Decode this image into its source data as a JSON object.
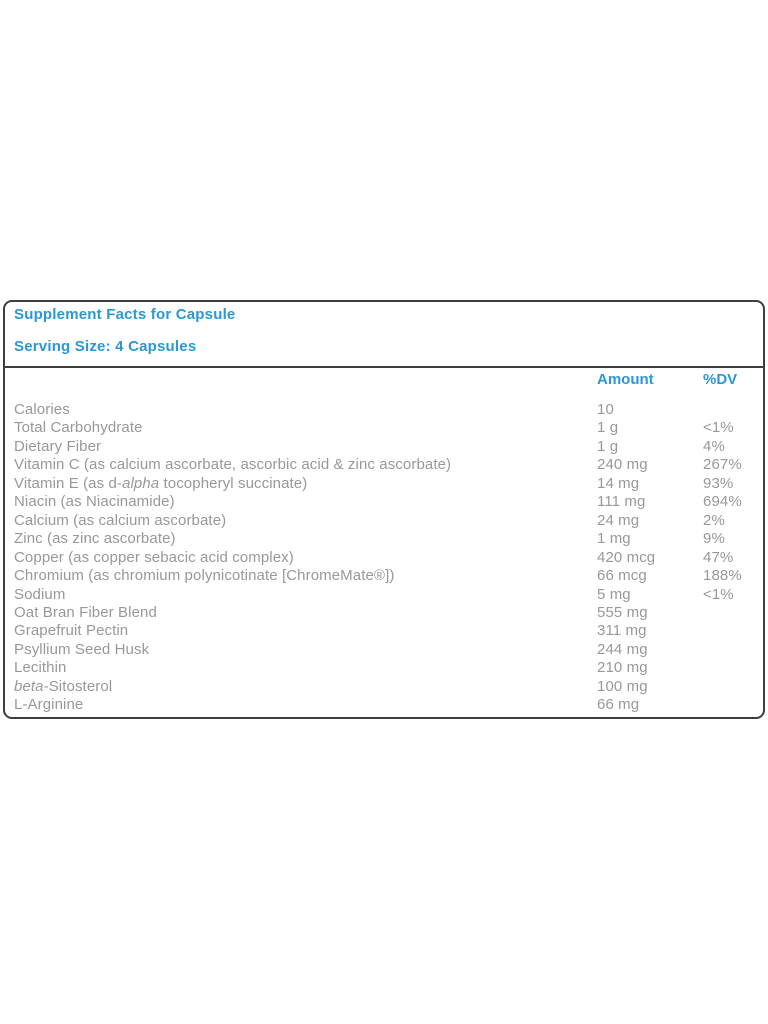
{
  "panel": {
    "title": "Supplement Facts for Capsule",
    "serving_size": "Serving Size: 4 Capsules",
    "columns": {
      "amount": "Amount",
      "dv": "%DV"
    },
    "colors": {
      "accent_blue": "#2b97d3",
      "text_gray": "#97989b",
      "border": "#3e3e40",
      "background": "#ffffff"
    },
    "rows": [
      {
        "name": "Calories",
        "amount": "10",
        "dv": ""
      },
      {
        "name": "Total Carbohydrate",
        "amount": "1 g",
        "dv": "<1%"
      },
      {
        "name": "Dietary Fiber",
        "amount": "1 g",
        "dv": "4%"
      },
      {
        "name": "Vitamin C (as calcium ascorbate, ascorbic acid & zinc ascorbate)",
        "amount": "240 mg",
        "dv": "267%"
      },
      {
        "name": "Vitamin E (as d-",
        "name_italic": "alpha",
        "name_rest": " tocopheryl succinate)",
        "amount": "14 mg",
        "dv": "93%"
      },
      {
        "name": "Niacin (as Niacinamide)",
        "amount": "111 mg",
        "dv": "694%"
      },
      {
        "name": "Calcium (as calcium ascorbate)",
        "amount": "24 mg",
        "dv": "2%"
      },
      {
        "name": "Zinc (as zinc ascorbate)",
        "amount": "1 mg",
        "dv": "9%"
      },
      {
        "name": "Copper (as copper sebacic acid complex)",
        "amount": "420 mcg",
        "dv": "47%"
      },
      {
        "name": "Chromium (as chromium polynicotinate [ChromeMate®])",
        "amount": "66 mcg",
        "dv": "188%"
      },
      {
        "name": "Sodium",
        "amount": "5 mg",
        "dv": "<1%"
      },
      {
        "name": "Oat Bran Fiber Blend",
        "amount": "555 mg",
        "dv": ""
      },
      {
        "name": "Grapefruit Pectin",
        "amount": "311 mg",
        "dv": ""
      },
      {
        "name": "Psyllium Seed Husk",
        "amount": "244 mg",
        "dv": ""
      },
      {
        "name": "Lecithin",
        "amount": "210 mg",
        "dv": ""
      },
      {
        "name": "",
        "name_italic": "beta",
        "name_rest": "-Sitosterol",
        "amount": "100 mg",
        "dv": ""
      },
      {
        "name": "L-Arginine",
        "amount": "66 mg",
        "dv": ""
      }
    ]
  }
}
